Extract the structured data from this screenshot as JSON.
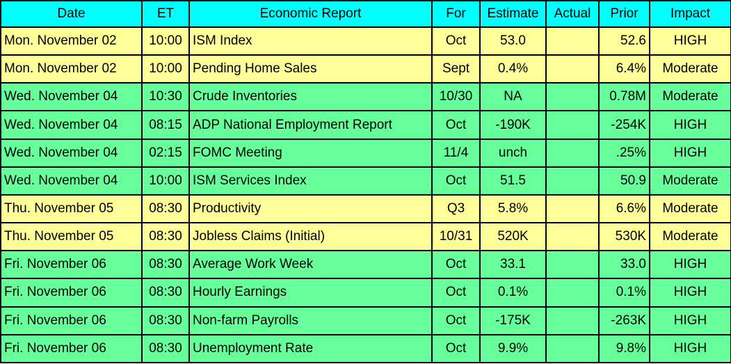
{
  "header": {
    "date": "Date",
    "et": "ET",
    "report": "Economic Report",
    "for": "For",
    "estimate": "Estimate",
    "actual": "Actual",
    "prior": "Prior",
    "impact": "Impact"
  },
  "colors": {
    "header_bg": "#00ffff",
    "yellow_row": "#ffff99",
    "green_row": "#66ff99",
    "border": "#000000"
  },
  "rows": [
    {
      "color": "yellow",
      "date": "Mon. November 02",
      "et": "10:00",
      "report": "ISM Index",
      "for": "Oct",
      "estimate": "53.0",
      "actual": "",
      "prior": "52.6",
      "impact": "HIGH"
    },
    {
      "color": "yellow",
      "date": "Mon. November 02",
      "et": "10:00",
      "report": "Pending Home Sales",
      "for": "Sept",
      "estimate": "0.4%",
      "actual": "",
      "prior": "6.4%",
      "impact": "Moderate"
    },
    {
      "color": "green",
      "date": "Wed. November 04",
      "et": "10:30",
      "report": "Crude Inventories",
      "for": "10/30",
      "estimate": "NA",
      "actual": "",
      "prior": "0.78M",
      "impact": "Moderate"
    },
    {
      "color": "green",
      "date": "Wed. November 04",
      "et": "08:15",
      "report": "ADP National Employment Report",
      "for": "Oct",
      "estimate": "-190K",
      "actual": "",
      "prior": "-254K",
      "impact": "HIGH"
    },
    {
      "color": "green",
      "date": "Wed. November 04",
      "et": "02:15",
      "report": "FOMC Meeting",
      "for": "11/4",
      "estimate": "unch",
      "actual": "",
      "prior": ".25%",
      "impact": "HIGH"
    },
    {
      "color": "green",
      "date": "Wed. November 04",
      "et": "10:00",
      "report": "ISM Services Index",
      "for": "Oct",
      "estimate": "51.5",
      "actual": "",
      "prior": "50.9",
      "impact": "Moderate"
    },
    {
      "color": "yellow",
      "date": "Thu. November 05",
      "et": "08:30",
      "report": "Productivity",
      "for": "Q3",
      "estimate": "5.8%",
      "actual": "",
      "prior": "6.6%",
      "impact": "Moderate"
    },
    {
      "color": "yellow",
      "date": "Thu. November 05",
      "et": "08:30",
      "report": "Jobless Claims (Initial)",
      "for": "10/31",
      "estimate": "520K",
      "actual": "",
      "prior": "530K",
      "impact": "Moderate"
    },
    {
      "color": "green",
      "date": "Fri. November 06",
      "et": "08:30",
      "report": "Average Work Week",
      "for": "Oct",
      "estimate": "33.1",
      "actual": "",
      "prior": "33.0",
      "impact": "HIGH"
    },
    {
      "color": "green",
      "date": "Fri. November 06",
      "et": "08:30",
      "report": "Hourly Earnings",
      "for": "Oct",
      "estimate": "0.1%",
      "actual": "",
      "prior": "0.1%",
      "impact": "HIGH"
    },
    {
      "color": "green",
      "date": "Fri. November 06",
      "et": "08:30",
      "report": "Non-farm Payrolls",
      "for": "Oct",
      "estimate": "-175K",
      "actual": "",
      "prior": "-263K",
      "impact": "HIGH"
    },
    {
      "color": "green",
      "date": "Fri. November 06",
      "et": "08:30",
      "report": "Unemployment Rate",
      "for": "Oct",
      "estimate": "9.9%",
      "actual": "",
      "prior": "9.8%",
      "impact": "HIGH"
    }
  ]
}
